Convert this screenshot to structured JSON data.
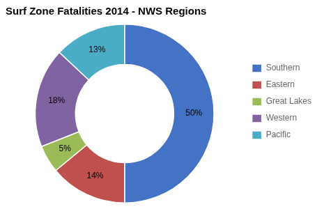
{
  "chart_data": {
    "type": "doughnut",
    "title": "Surf Zone Fatalities 2014 - NWS Regions",
    "categories": [
      "Southern",
      "Eastern",
      "Great Lakes",
      "Western",
      "Pacific"
    ],
    "values": [
      50,
      14,
      5,
      18,
      13
    ],
    "value_labels": [
      "50%",
      "14%",
      "5%",
      "18%",
      "13%"
    ],
    "colors": [
      "#4472C4",
      "#C0504D",
      "#9BBB59",
      "#8064A2",
      "#4BACC6"
    ],
    "data_labels": true,
    "legend": "right"
  }
}
